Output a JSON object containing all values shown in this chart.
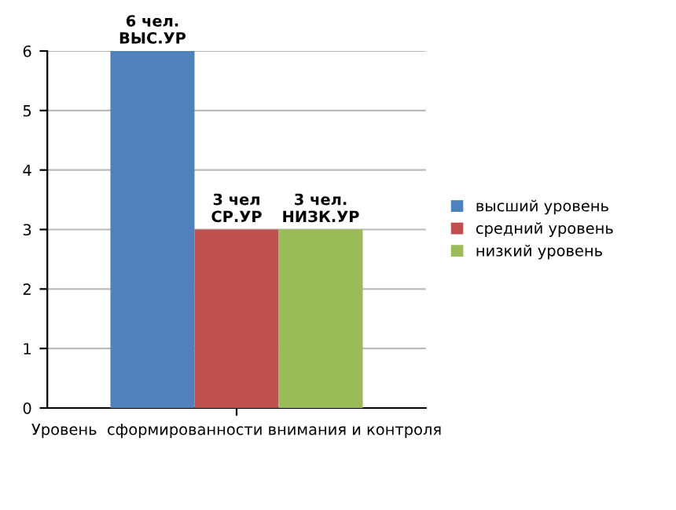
{
  "chart_data": {
    "type": "bar",
    "categories": [
      "Уровень  сформированности внимания и контроля"
    ],
    "series": [
      {
        "name": "высший уровень",
        "color": "#4f81bd",
        "values": [
          6
        ],
        "value_labels": [
          "6 чел.\nВЫС.УР"
        ]
      },
      {
        "name": "средний уровень",
        "color": "#c0504d",
        "values": [
          3
        ],
        "value_labels": [
          "3 чел\nСР.УР"
        ]
      },
      {
        "name": "низкий уровень",
        "color": "#9bbb59",
        "values": [
          3
        ],
        "value_labels": [
          "3 чел.\nНИЗК.УР"
        ]
      }
    ],
    "ylim": [
      0,
      6
    ],
    "yticks": [
      0,
      1,
      2,
      3,
      4,
      5,
      6
    ],
    "grid": "y",
    "legend": "right"
  }
}
